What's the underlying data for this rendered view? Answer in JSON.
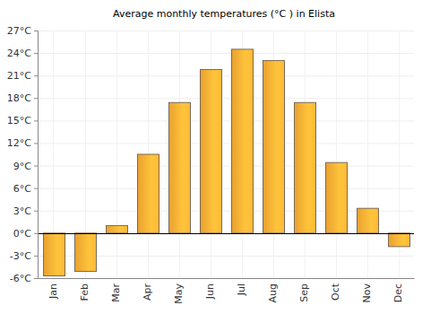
{
  "chart_data": {
    "type": "bar",
    "title": "Average monthly temperatures (°C ) in Elista",
    "categories": [
      "Jan",
      "Feb",
      "Mar",
      "Apr",
      "May",
      "Jun",
      "Jul",
      "Aug",
      "Sep",
      "Oct",
      "Nov",
      "Dec"
    ],
    "values": [
      -5.7,
      -5.1,
      1.0,
      10.5,
      17.4,
      21.8,
      24.5,
      23.0,
      17.4,
      9.4,
      3.3,
      -1.8
    ],
    "color": "#ffb035",
    "ylim": [
      -6,
      27
    ],
    "yticks": [
      {
        "value": -6,
        "label": "-6°C"
      },
      {
        "value": -3,
        "label": "-3°C"
      },
      {
        "value": 0,
        "label": "0°C"
      },
      {
        "value": 3,
        "label": "3°C"
      },
      {
        "value": 6,
        "label": "6°C"
      },
      {
        "value": 9,
        "label": "9°C"
      },
      {
        "value": 12,
        "label": "12°C"
      },
      {
        "value": 15,
        "label": "15°C"
      },
      {
        "value": 18,
        "label": "18°C"
      },
      {
        "value": 21,
        "label": "21°C"
      },
      {
        "value": 24,
        "label": "24°C"
      },
      {
        "value": 27,
        "label": "27°C"
      }
    ],
    "grid": true
  }
}
